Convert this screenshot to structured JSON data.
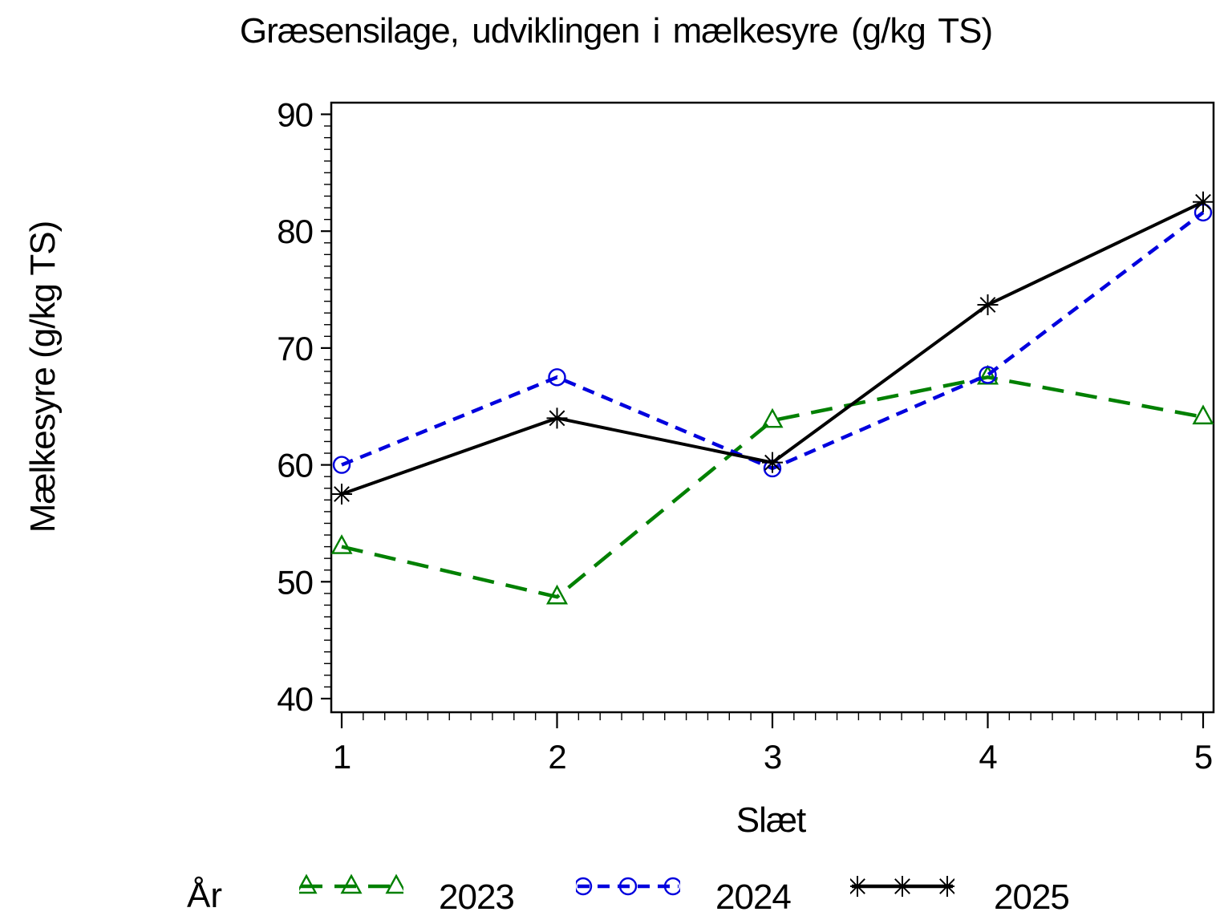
{
  "chart_data": {
    "type": "line",
    "title": "Græsensilage, udviklingen i mælkesyre (g/kg TS)",
    "xlabel": "Slæt",
    "ylabel": "Mælkesyre (g/kg TS)",
    "x": [
      1,
      2,
      3,
      4,
      5
    ],
    "xlim": [
      1,
      5
    ],
    "ylim": [
      40,
      90
    ],
    "xticks": [
      1,
      2,
      3,
      4,
      5
    ],
    "yticks": [
      40,
      50,
      60,
      70,
      80,
      90
    ],
    "x_minor_step": 0.1,
    "y_minor_step": 1,
    "grid": false,
    "frame": true,
    "legend": {
      "title": "År",
      "position": "bottom"
    },
    "series": [
      {
        "name": "2023",
        "color": "#008000",
        "line": "dashed-long",
        "marker": "triangle",
        "values": [
          53.0,
          48.7,
          63.8,
          67.5,
          64.1
        ]
      },
      {
        "name": "2024",
        "color": "#0000DE",
        "line": "dashed",
        "marker": "circle",
        "values": [
          60.0,
          67.5,
          59.7,
          67.7,
          81.6
        ]
      },
      {
        "name": "2025",
        "color": "#000000",
        "line": "solid",
        "marker": "star",
        "values": [
          57.5,
          64.0,
          60.2,
          73.7,
          82.5
        ]
      }
    ]
  }
}
